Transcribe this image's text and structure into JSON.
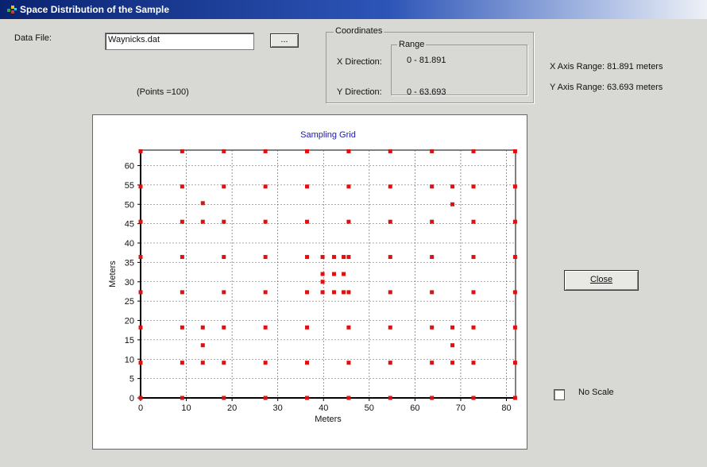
{
  "window": {
    "title": "Space Distribution of the Sample"
  },
  "data_file": {
    "label": "Data File:",
    "value": "Waynicks.dat",
    "browse_button_label": "..."
  },
  "points_text": "(Points =100)",
  "coordinates": {
    "group_label": "Coordinates",
    "range_label": "Range",
    "x_direction_label": "X Direction:",
    "y_direction_label": "Y Direction:",
    "x_range": "0 - 81.891",
    "y_range": "0 - 63.693"
  },
  "axis_ranges": {
    "x_text": "X Axis Range:  81.891 meters",
    "y_text": "Y Axis Range:  63.693 meters"
  },
  "close_button": {
    "label": "Close"
  },
  "no_scale": {
    "label": "No Scale",
    "checked": false
  },
  "colors": {
    "point": "#e01010",
    "title": "#1a1aa0",
    "grid": "#555555"
  },
  "chart_data": {
    "type": "scatter",
    "title": "Sampling Grid",
    "xlabel": "Meters",
    "ylabel": "Meters",
    "xlim": [
      0,
      82
    ],
    "ylim": [
      0,
      64
    ],
    "xticks": [
      0,
      10,
      20,
      30,
      40,
      50,
      60,
      70,
      80
    ],
    "yticks": [
      0,
      5,
      10,
      15,
      20,
      25,
      30,
      35,
      40,
      45,
      50,
      55,
      60
    ],
    "grid": true,
    "x": [
      0,
      9.1,
      18.2,
      27.3,
      36.4,
      45.5,
      54.6,
      63.7,
      72.8,
      81.9,
      0,
      9.1,
      18.2,
      27.3,
      36.4,
      45.5,
      54.6,
      63.7,
      72.8,
      81.9,
      0,
      9.1,
      18.2,
      27.3,
      36.4,
      45.5,
      54.6,
      63.7,
      72.8,
      81.9,
      0,
      9.1,
      18.2,
      27.3,
      36.4,
      45.5,
      54.6,
      63.7,
      72.8,
      81.9,
      0,
      9.1,
      18.2,
      27.3,
      36.4,
      45.5,
      54.6,
      63.7,
      72.8,
      81.9,
      0,
      9.1,
      18.2,
      27.3,
      36.4,
      45.5,
      54.6,
      63.7,
      72.8,
      81.9,
      0,
      9.1,
      18.2,
      27.3,
      36.4,
      45.5,
      54.6,
      63.7,
      72.8,
      81.9,
      0,
      9.1,
      18.2,
      27.3,
      36.4,
      45.5,
      54.6,
      63.7,
      72.8,
      81.9,
      13.6,
      13.6,
      13.6,
      68.2,
      68.2,
      68.2,
      39.8,
      39.8,
      42.3,
      44.4,
      42.3,
      39.8,
      44.4,
      39.8,
      42.3,
      44.4,
      68.2,
      13.6,
      13.6,
      68.2
    ],
    "y": [
      0,
      0,
      0,
      0,
      0,
      0,
      0,
      0,
      0,
      0,
      9.1,
      9.1,
      9.1,
      9.1,
      9.1,
      9.1,
      9.1,
      9.1,
      9.1,
      9.1,
      18.2,
      18.2,
      18.2,
      18.2,
      18.2,
      18.2,
      18.2,
      18.2,
      18.2,
      18.2,
      27.3,
      27.3,
      27.3,
      27.3,
      27.3,
      27.3,
      27.3,
      27.3,
      27.3,
      27.3,
      36.4,
      36.4,
      36.4,
      36.4,
      36.4,
      36.4,
      36.4,
      36.4,
      36.4,
      36.4,
      45.5,
      45.5,
      45.5,
      45.5,
      45.5,
      45.5,
      45.5,
      45.5,
      45.5,
      45.5,
      54.6,
      54.6,
      54.6,
      54.6,
      54.6,
      54.6,
      54.6,
      54.6,
      54.6,
      54.6,
      63.7,
      63.7,
      63.7,
      63.7,
      63.7,
      63.7,
      63.7,
      63.7,
      63.7,
      63.7,
      9.1,
      13.6,
      18.2,
      9.1,
      13.6,
      18.2,
      27.3,
      32.0,
      27.3,
      27.3,
      32.0,
      36.4,
      32.0,
      30.0,
      36.4,
      36.4,
      50.0,
      45.5,
      50.3,
      54.6
    ]
  }
}
